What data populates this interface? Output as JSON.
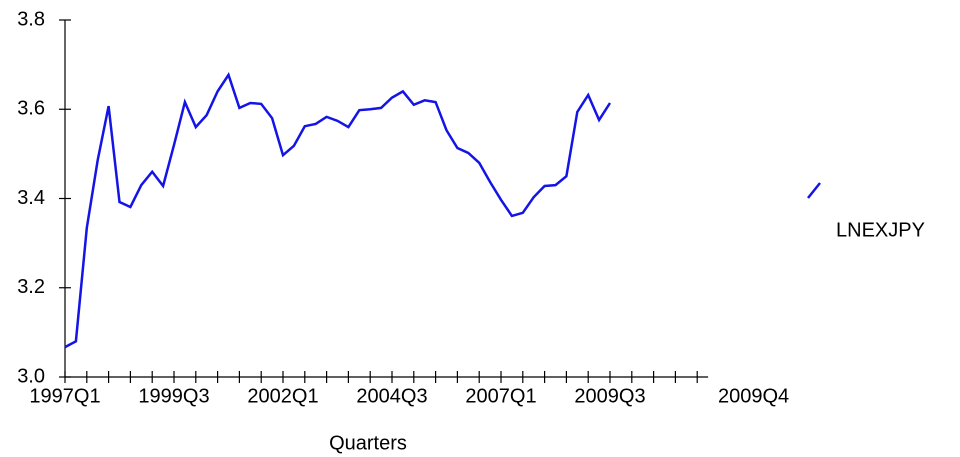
{
  "chart_data": {
    "type": "line",
    "x_label": "Quarters",
    "annotation": "2009Q4",
    "categories": [
      "1997Q1",
      null,
      null,
      null,
      null,
      null,
      null,
      null,
      null,
      null,
      "1999Q3",
      null,
      null,
      null,
      null,
      null,
      null,
      null,
      null,
      null,
      "2002Q1",
      null,
      null,
      null,
      null,
      null,
      null,
      null,
      null,
      null,
      "2004Q3",
      null,
      null,
      null,
      null,
      null,
      null,
      null,
      null,
      null,
      "2007Q1",
      null,
      null,
      null,
      null,
      null,
      null,
      null,
      null,
      null,
      "2009Q3",
      null,
      null,
      null,
      null,
      null,
      null,
      null,
      null,
      null
    ],
    "series": [
      {
        "name": "LNEXJPY",
        "color": "#1414e6",
        "values": [
          3.067,
          3.08,
          3.334,
          3.486,
          3.607,
          3.392,
          3.381,
          3.43,
          3.46,
          3.428,
          3.52,
          3.616,
          3.56,
          3.587,
          3.64,
          3.677,
          3.603,
          3.614,
          3.612,
          3.58,
          3.497,
          3.518,
          3.562,
          3.567,
          3.583,
          3.574,
          3.56,
          3.598,
          3.6,
          3.603,
          3.626,
          3.64,
          3.61,
          3.62,
          3.616,
          3.553,
          3.513,
          3.502,
          3.48,
          3.437,
          3.397,
          3.361,
          3.368,
          3.403,
          3.428,
          3.43,
          3.45,
          3.594,
          3.632,
          3.576,
          3.614,
          null,
          null,
          null,
          null,
          null,
          null,
          null,
          null,
          null
        ]
      }
    ],
    "ylim": [
      3,
      3.8
    ],
    "yticks": [
      {
        "value": 3,
        "label": "3.0"
      },
      3.2,
      3.4,
      3.6,
      3.8
    ]
  }
}
